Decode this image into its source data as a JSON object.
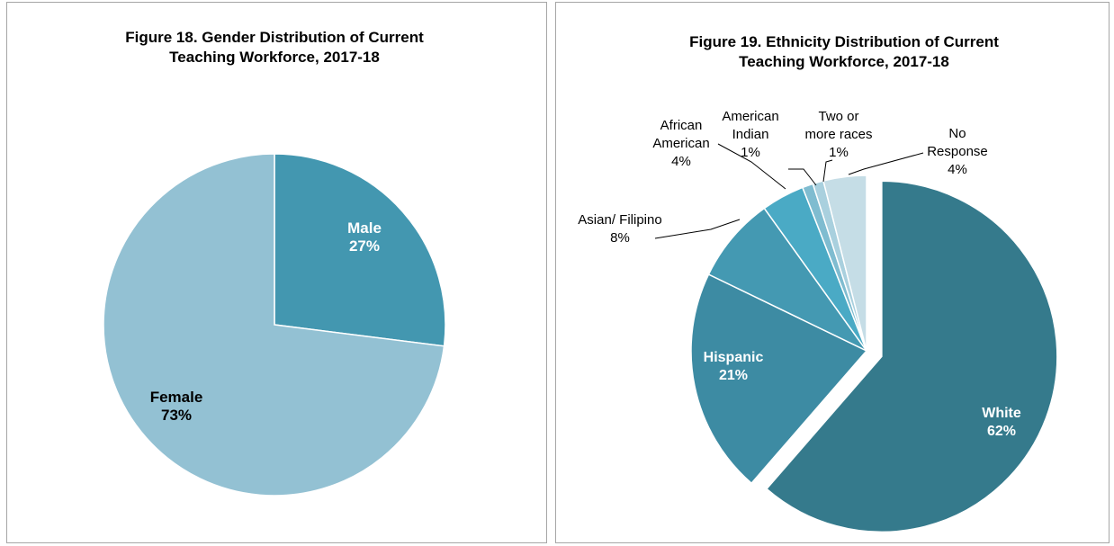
{
  "chart_data": [
    {
      "type": "pie",
      "title": "Figure 18. Gender Distribution of Current Teaching Workforce, 2017-18",
      "categories": [
        "Male",
        "Female"
      ],
      "values": [
        27,
        73
      ],
      "value_labels": [
        "27%",
        "73%"
      ],
      "colors": [
        "#4397b0",
        "#93c1d3"
      ]
    },
    {
      "type": "pie",
      "title": "Figure 19. Ethnicity Distribution of Current Teaching Workforce, 2017-18",
      "categories": [
        "White",
        "Hispanic",
        "Asian/ Filipino",
        "African American",
        "American Indian",
        "Two or more races",
        "No Response"
      ],
      "values": [
        62,
        21,
        8,
        4,
        1,
        1,
        4
      ],
      "value_labels": [
        "62%",
        "21%",
        "8%",
        "4%",
        "1%",
        "1%",
        "4%"
      ],
      "colors": [
        "#357a8c",
        "#3d8ba3",
        "#4499b2",
        "#4aaac5",
        "#7fbcd0",
        "#a9d0de",
        "#c5dde6"
      ]
    }
  ]
}
